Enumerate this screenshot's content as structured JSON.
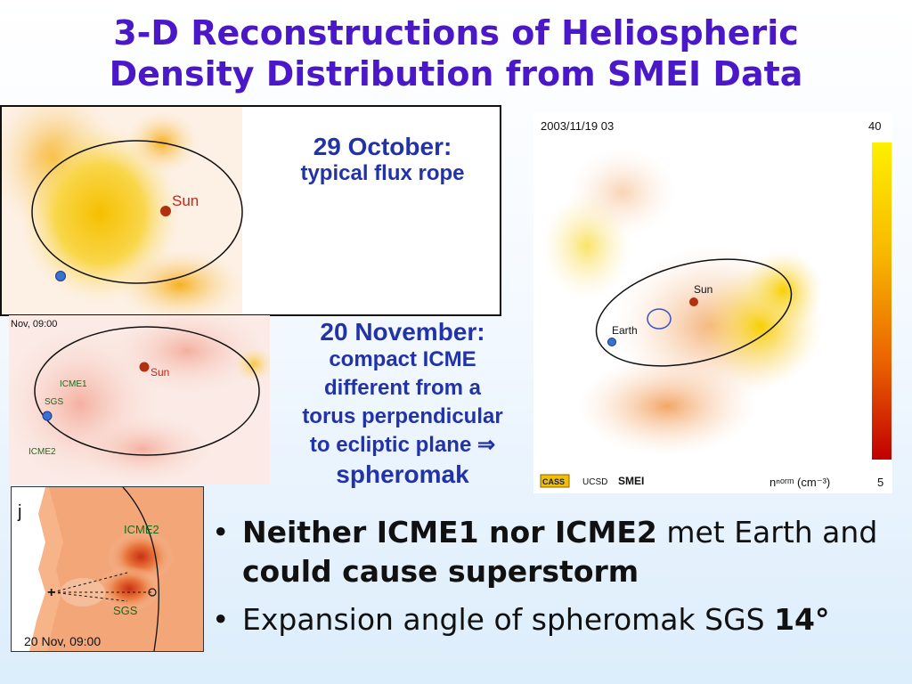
{
  "slide": {
    "title_line1": "3-D Reconstructions of Heliospheric",
    "title_line2": "Density Distribution from SMEI Data"
  },
  "panel_oct": {
    "sun_label": "Sun"
  },
  "caption_oct": {
    "heading": "29 October:",
    "body": "typical flux rope"
  },
  "panel_nov": {
    "timestamp": "Nov, 09:00",
    "sun_label": "Sun",
    "icme1_label": "ICME1",
    "sgs_label": "SGS",
    "icme2_label": "ICME2"
  },
  "caption_nov": {
    "heading": "20 November:",
    "line1": "compact ICME",
    "line2": "different from a",
    "line3": "torus perpendicular",
    "line4": "to ecliptic plane ⇒",
    "line5": "spheromak"
  },
  "panel_smei": {
    "timestamp": "2003/11/19 03",
    "scale_max": "40",
    "scale_min": "5",
    "sun_label": "Sun",
    "earth_label": "Earth",
    "logo_cass": "CASS",
    "logo_ucsd": "UCSD",
    "instrument": "SMEI",
    "unit_label": "nⁿᵒʳᵐ (cm⁻³)"
  },
  "panel_slice": {
    "corner_letter": "j",
    "icme2_label": "ICME2",
    "sgs_label": "SGS",
    "timestamp": "20 Nov, 09:00"
  },
  "bullets": [
    {
      "bold1": "Neither ICME1 nor ICME2",
      "text1": " met Earth and ",
      "bold2": "could cause superstorm"
    },
    {
      "text1": "Expansion angle of spheromak SGS ",
      "bold1": "14°"
    }
  ],
  "colors": {
    "title": "#4a18c8",
    "caption": "#2233aa",
    "sun": "#b03010",
    "earth": "#3a70d0"
  }
}
